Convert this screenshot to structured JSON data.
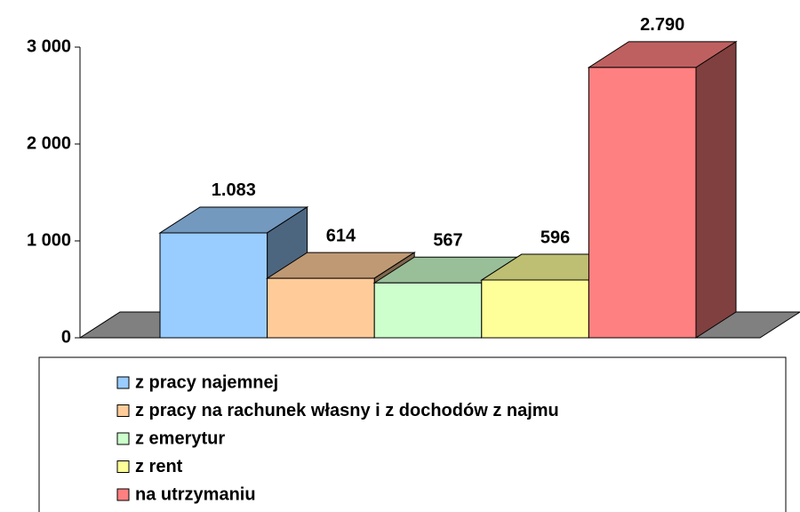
{
  "chart_data": {
    "type": "bar3d",
    "categories": [
      "z pracy najemnej",
      "z pracy na rachunek własny i z dochodów z najmu",
      "z emerytur",
      "z rent",
      "na utrzymaniu"
    ],
    "values": [
      1083,
      614,
      567,
      596,
      2790
    ],
    "value_labels": [
      "1.083",
      "614",
      "567",
      "596",
      "2.790"
    ],
    "colors": [
      "#99ccff",
      "#ffcc99",
      "#ccffcc",
      "#ffff99",
      "#ff8080"
    ],
    "ylim": [
      0,
      3000
    ],
    "yticks": [
      0,
      {
        "value": 1000,
        "label": "1 000"
      },
      {
        "value": 2000,
        "label": "2 000"
      },
      {
        "value": 3000,
        "label": "3 000"
      }
    ],
    "legend": "bottom"
  }
}
